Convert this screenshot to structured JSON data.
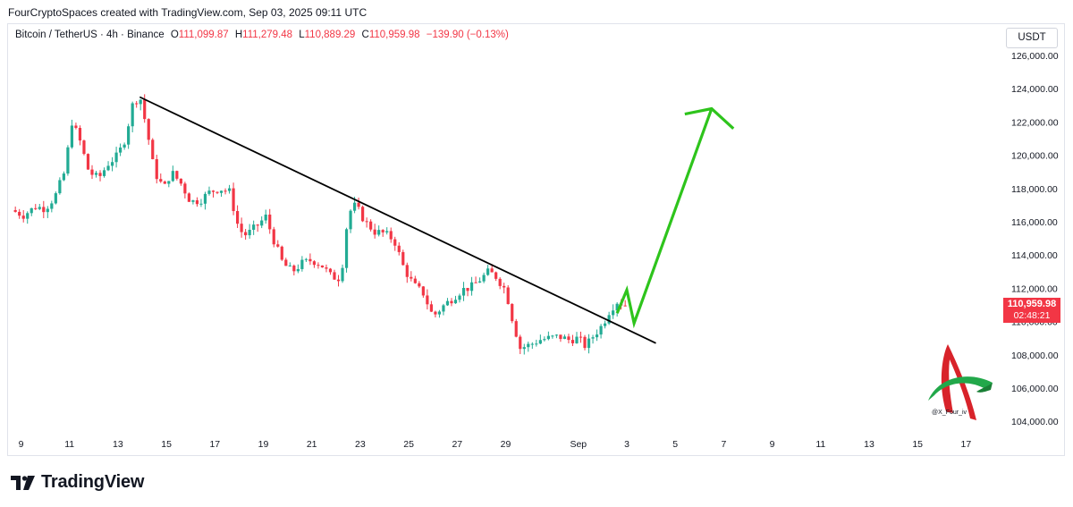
{
  "header": {
    "attribution": "FourCryptoSpaces created with TradingView.com, Sep 03, 2025 09:11 UTC"
  },
  "legend": {
    "symbol": "Bitcoin / TetherUS · 4h · Binance",
    "open_label": "O",
    "open": "111,099.87",
    "high_label": "H",
    "high": "111,279.48",
    "low_label": "L",
    "low": "110,889.29",
    "close_label": "C",
    "close": "110,959.98",
    "change": "−139.90 (−0.13%)"
  },
  "currency_button": "USDT",
  "price_tag": {
    "price": "110,959.98",
    "countdown": "02:48:21"
  },
  "watermark": {
    "handle": "@X_Four_iv"
  },
  "footer": {
    "brand": "TradingView"
  },
  "colors": {
    "up": "#22ab94",
    "down": "#f23645",
    "trendline": "#000000",
    "arrow": "#2ec41c"
  },
  "chart_data": {
    "type": "candlestick",
    "title": "Bitcoin / TetherUS · 4h · Binance",
    "ylabel": "USDT",
    "ylim": [
      103000,
      127000
    ],
    "y_ticks": [
      "126,000.00",
      "124,000.00",
      "122,000.00",
      "120,000.00",
      "118,000.00",
      "116,000.00",
      "114,000.00",
      "112,000.00",
      "110,000.00",
      "108,000.00",
      "106,000.00",
      "104,000.00"
    ],
    "y_tick_values": [
      126000,
      124000,
      122000,
      120000,
      118000,
      116000,
      114000,
      112000,
      110000,
      108000,
      106000,
      104000
    ],
    "x_ticks": [
      "9",
      "11",
      "13",
      "15",
      "17",
      "19",
      "21",
      "23",
      "25",
      "27",
      "29",
      "Sep",
      "3",
      "5",
      "7",
      "9",
      "11",
      "13",
      "15",
      "17"
    ],
    "x_tick_days": [
      9,
      11,
      13,
      15,
      17,
      19,
      21,
      23,
      25,
      27,
      29,
      32,
      34,
      36,
      38,
      40,
      42,
      44,
      46,
      48
    ],
    "x_range_days": [
      8.6,
      48.5
    ],
    "close_series": [
      [
        8.6,
        116700
      ],
      [
        9.1,
        116400
      ],
      [
        9.6,
        116900
      ],
      [
        10.0,
        116800
      ],
      [
        10.4,
        117500
      ],
      [
        10.8,
        119000
      ],
      [
        11.1,
        122000
      ],
      [
        11.4,
        121000
      ],
      [
        11.8,
        119000
      ],
      [
        12.2,
        118600
      ],
      [
        12.6,
        119500
      ],
      [
        13.0,
        120000
      ],
      [
        13.3,
        121000
      ],
      [
        13.6,
        123000
      ],
      [
        13.9,
        123600
      ],
      [
        14.2,
        121500
      ],
      [
        14.5,
        119000
      ],
      [
        14.9,
        118000
      ],
      [
        15.2,
        119000
      ],
      [
        15.6,
        118300
      ],
      [
        16.0,
        117200
      ],
      [
        16.4,
        117300
      ],
      [
        16.8,
        117800
      ],
      [
        17.2,
        118000
      ],
      [
        17.6,
        117800
      ],
      [
        18.0,
        115500
      ],
      [
        18.3,
        115200
      ],
      [
        18.7,
        115700
      ],
      [
        19.1,
        116300
      ],
      [
        19.4,
        115000
      ],
      [
        19.8,
        113500
      ],
      [
        20.2,
        113000
      ],
      [
        20.6,
        113500
      ],
      [
        21.0,
        113700
      ],
      [
        21.4,
        113400
      ],
      [
        21.8,
        112700
      ],
      [
        22.2,
        112600
      ],
      [
        22.5,
        116500
      ],
      [
        22.8,
        117000
      ],
      [
        23.2,
        116000
      ],
      [
        23.6,
        115400
      ],
      [
        24.0,
        115300
      ],
      [
        24.4,
        114900
      ],
      [
        24.8,
        113200
      ],
      [
        25.2,
        112200
      ],
      [
        25.6,
        111700
      ],
      [
        26.0,
        110300
      ],
      [
        26.4,
        110900
      ],
      [
        26.8,
        111400
      ],
      [
        27.2,
        111900
      ],
      [
        27.6,
        112100
      ],
      [
        28.0,
        112600
      ],
      [
        28.3,
        113000
      ],
      [
        28.6,
        112700
      ],
      [
        29.0,
        111900
      ],
      [
        29.3,
        110000
      ],
      [
        29.6,
        108400
      ],
      [
        30.0,
        108600
      ],
      [
        30.4,
        108900
      ],
      [
        30.8,
        109000
      ],
      [
        31.2,
        109100
      ],
      [
        31.6,
        108900
      ],
      [
        32.0,
        109000
      ],
      [
        32.3,
        108500
      ],
      [
        32.6,
        109100
      ],
      [
        33.0,
        109800
      ],
      [
        33.3,
        110700
      ],
      [
        33.6,
        111200
      ],
      [
        34.0,
        110960
      ]
    ],
    "annotations": {
      "trendline": [
        [
          13.9,
          123500
        ],
        [
          35.2,
          108700
        ]
      ],
      "projection_arrow": [
        [
          33.6,
          110500
        ],
        [
          34.0,
          111900
        ],
        [
          34.3,
          109900
        ],
        [
          37.5,
          122800
        ],
        [
          38.4,
          121600
        ]
      ]
    }
  }
}
